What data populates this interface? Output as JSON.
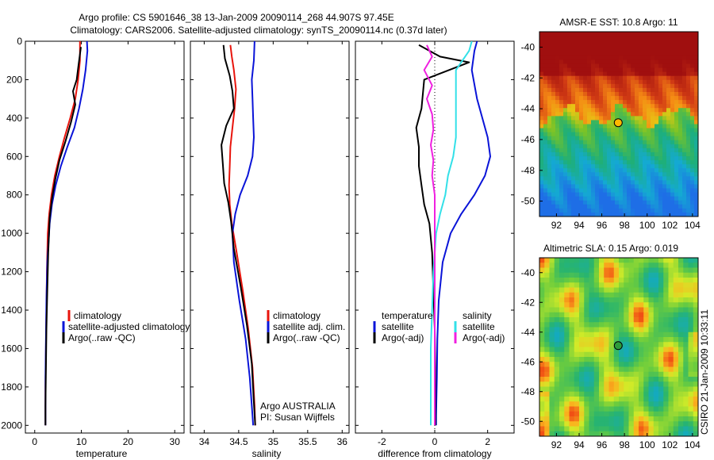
{
  "figure": {
    "title_line1": "Argo profile: CS 5901646_38 13-Jan-2009 20090114_268 44.907S 97.45E",
    "title_line2": "Climatology: CARS2006. Satellite-adjusted climatology: synTS_20090114.nc (0.37d later)",
    "credit": "CSIRO 21-Jan-2009 10:33:11",
    "argo_note_line1": "Argo AUSTRALIA",
    "argo_note_line2": "PI: Susan Wijffels"
  },
  "colors": {
    "climatology": "#e8140c",
    "satellite": "#0a14d8",
    "argo": "#000000",
    "salinity_satellite": "#33e0e8",
    "salinity_argo": "#f020e0",
    "float_marker_sst": "#ffb800",
    "float_marker_sla": "#2e9c3c"
  },
  "chart_data": [
    {
      "id": "temperature",
      "type": "line",
      "xlabel": "temperature",
      "xlim": [
        -2,
        32
      ],
      "xticks": [
        0,
        10,
        20,
        30
      ],
      "ylim": [
        2040,
        0
      ],
      "yticks": [
        0,
        200,
        400,
        600,
        800,
        1000,
        1200,
        1400,
        1600,
        1800,
        2000
      ],
      "legend_position": "lower-right",
      "series": [
        {
          "name": "climatology",
          "color": "#e8140c",
          "x": [
            9.7,
            9.7,
            9.3,
            8.7,
            7.6,
            6.4,
            5.3,
            4.3,
            3.6,
            3.1,
            2.8,
            2.6,
            2.5,
            2.4,
            2.3,
            2.3,
            2.3
          ],
          "y": [
            0,
            100,
            200,
            300,
            400,
            500,
            600,
            700,
            800,
            900,
            1000,
            1200,
            1400,
            1600,
            1800,
            1950,
            2000
          ]
        },
        {
          "name": "satellite-adjusted climatology",
          "color": "#0a14d8",
          "x": [
            11.2,
            11.3,
            10.9,
            10.3,
            9.5,
            8.5,
            7.0,
            5.6,
            4.5,
            3.7,
            3.2,
            2.7,
            2.5,
            2.4,
            2.3,
            2.3,
            2.3
          ],
          "y": [
            0,
            50,
            150,
            250,
            350,
            450,
            550,
            650,
            750,
            850,
            950,
            1150,
            1350,
            1550,
            1750,
            1950,
            2000
          ]
        },
        {
          "name": "Argo(..raw -QC)",
          "color": "#000000",
          "x": [
            9.9,
            9.4,
            9.0,
            8.2,
            8.7,
            7.8,
            6.6,
            5.3,
            4.4,
            3.7,
            3.2,
            2.9,
            2.7,
            2.5,
            2.4,
            2.3,
            2.3
          ],
          "y": [
            30,
            120,
            200,
            260,
            330,
            420,
            520,
            620,
            720,
            820,
            920,
            1100,
            1300,
            1500,
            1700,
            1900,
            2000
          ]
        }
      ]
    },
    {
      "id": "salinity",
      "type": "line",
      "xlabel": "salinity",
      "xlim": [
        33.8,
        36.1
      ],
      "xticks": [
        34,
        34.5,
        35,
        35.5,
        36
      ],
      "ylim": [
        2040,
        0
      ],
      "legend_position": "lower-right",
      "series": [
        {
          "name": "climatology",
          "color": "#e8140c",
          "x": [
            34.38,
            34.4,
            34.43,
            34.46,
            34.44,
            34.41,
            34.38,
            34.37,
            34.36,
            34.37,
            34.4,
            34.47,
            34.56,
            34.64,
            34.7,
            34.73,
            34.74
          ],
          "y": [
            20,
            80,
            150,
            250,
            350,
            450,
            550,
            650,
            750,
            850,
            950,
            1100,
            1300,
            1500,
            1700,
            1900,
            2000
          ]
        },
        {
          "name": "satellite adj. clim.",
          "color": "#0a14d8",
          "x": [
            34.73,
            34.72,
            34.69,
            34.7,
            34.71,
            34.72,
            34.7,
            34.63,
            34.52,
            34.45,
            34.41,
            34.43,
            34.51,
            34.6,
            34.66,
            34.7,
            34.71
          ],
          "y": [
            0,
            100,
            200,
            300,
            400,
            500,
            600,
            700,
            800,
            900,
            1000,
            1150,
            1350,
            1550,
            1750,
            1950,
            2000
          ]
        },
        {
          "name": "Argo(..raw -QC)",
          "color": "#000000",
          "x": [
            34.28,
            34.3,
            34.37,
            34.41,
            34.43,
            34.32,
            34.25,
            34.27,
            34.29,
            34.35,
            34.39,
            34.43,
            34.53,
            34.62,
            34.69,
            34.72,
            34.74
          ],
          "y": [
            20,
            90,
            180,
            260,
            350,
            440,
            540,
            640,
            740,
            840,
            940,
            1080,
            1280,
            1480,
            1680,
            1880,
            2000
          ]
        }
      ]
    },
    {
      "id": "difference",
      "type": "line",
      "xlabel": "difference from climatology",
      "xlim": [
        -3,
        3
      ],
      "xticks": [
        -2,
        0,
        2
      ],
      "ylim": [
        2040,
        0
      ],
      "legend_position": "lower-center",
      "zero_line": "dotted",
      "legend_titles": [
        "temperature",
        "salinity"
      ],
      "series": [
        {
          "name": "satellite",
          "group": "temperature",
          "color": "#0a14d8",
          "x": [
            1.6,
            1.5,
            1.4,
            1.6,
            1.8,
            2.0,
            2.1,
            1.9,
            1.5,
            1.0,
            0.6,
            0.3,
            0.15,
            0.1,
            0.08,
            0.05,
            0.05
          ],
          "y": [
            0,
            50,
            150,
            300,
            400,
            500,
            600,
            700,
            800,
            900,
            1000,
            1150,
            1350,
            1550,
            1750,
            1950,
            2000
          ]
        },
        {
          "name": "Argo(-adj)",
          "group": "temperature",
          "color": "#000000",
          "x": [
            -0.6,
            0.2,
            1.3,
            -0.4,
            -0.5,
            -0.7,
            -0.6,
            -0.6,
            -0.5,
            -0.4,
            -0.2,
            -0.1,
            -0.05,
            0,
            0.02,
            0.02,
            0.02
          ],
          "y": [
            20,
            80,
            110,
            200,
            350,
            450,
            550,
            650,
            750,
            850,
            950,
            1100,
            1300,
            1500,
            1700,
            1900,
            2000
          ]
        },
        {
          "name": "satellite",
          "group": "salinity",
          "color": "#33e0e8",
          "x": [
            1.4,
            1.3,
            0.8,
            0.8,
            0.8,
            0.8,
            0.7,
            0.5,
            0.4,
            0.2,
            0.05,
            -0.05,
            -0.1,
            -0.15,
            -0.15,
            -0.15,
            -0.15
          ],
          "y": [
            0,
            50,
            150,
            300,
            400,
            500,
            600,
            700,
            800,
            900,
            1000,
            1200,
            1400,
            1600,
            1800,
            1950,
            2000
          ]
        },
        {
          "name": "Argo(-adj)",
          "group": "salinity",
          "color": "#f020e0",
          "x": [
            -0.3,
            -0.1,
            -0.4,
            -0.1,
            -0.3,
            -0.1,
            -0.05,
            -0.15,
            -0.05,
            -0.1,
            0,
            0,
            0,
            0,
            0,
            0,
            0
          ],
          "y": [
            20,
            80,
            150,
            230,
            300,
            380,
            460,
            540,
            620,
            700,
            800,
            1000,
            1200,
            1400,
            1600,
            1800,
            2000
          ]
        }
      ]
    },
    {
      "id": "sst_map",
      "type": "heatmap",
      "title": "AMSR-E SST: 10.8 Argo: 11",
      "xlim": [
        90.5,
        104.5
      ],
      "ylim": [
        -51,
        -39
      ],
      "xticks": [
        92,
        94,
        96,
        98,
        100,
        102,
        104
      ],
      "yticks": [
        -40,
        -42,
        -44,
        -46,
        -48,
        -50
      ],
      "marker": {
        "lon": 97.45,
        "lat": -44.907
      }
    },
    {
      "id": "sla_map",
      "type": "heatmap",
      "title": "Altimetric SLA: 0.15 Argo: 0.019",
      "xlim": [
        90.5,
        104.5
      ],
      "ylim": [
        -51,
        -39
      ],
      "xticks": [
        92,
        94,
        96,
        98,
        100,
        102,
        104
      ],
      "yticks": [
        -40,
        -42,
        -44,
        -46,
        -48,
        -50
      ],
      "marker": {
        "lon": 97.45,
        "lat": -44.907
      }
    }
  ],
  "legends": {
    "temperature": [
      "climatology",
      "satellite-adjusted climatology",
      "Argo(..raw -QC)"
    ],
    "salinity": [
      "climatology",
      "satellite adj. clim.",
      "Argo(..raw -QC)"
    ],
    "difference_temperature": [
      "satellite",
      "Argo(-adj)"
    ],
    "difference_salinity": [
      "satellite",
      "Argo(-adj)"
    ]
  }
}
